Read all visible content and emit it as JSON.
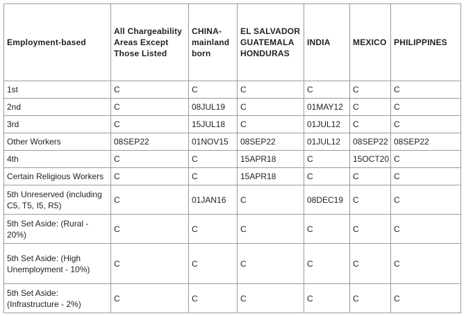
{
  "headers": [
    "Employment-based",
    "All Chargeability Areas Except Those Listed",
    "CHINA-mainland born",
    "EL SALVADOR GUATEMALA HONDURAS",
    "INDIA",
    "MEXICO",
    "PHILIPPINES"
  ],
  "rows": [
    [
      "1st",
      "C",
      "C",
      "C",
      "C",
      "C",
      "C"
    ],
    [
      "2nd",
      "C",
      "08JUL19",
      "C",
      "01MAY12",
      "C",
      "C"
    ],
    [
      "3rd",
      "C",
      "15JUL18",
      "C",
      "01JUL12",
      "C",
      "C"
    ],
    [
      "Other Workers",
      "08SEP22",
      "01NOV15",
      "08SEP22",
      "01JUL12",
      "08SEP22",
      "08SEP22"
    ],
    [
      "4th",
      "C",
      "C",
      "15APR18",
      "C",
      "15OCT20",
      "C"
    ],
    [
      "Certain Religious Workers",
      "C",
      "C",
      "15APR18",
      "C",
      "C",
      "C"
    ],
    [
      "5th Unreserved (including C5, T5, I5, R5)",
      "C",
      "01JAN16",
      "C",
      "08DEC19",
      "C",
      "C"
    ],
    [
      "5th Set Aside: (Rural - 20%)",
      "C",
      "C",
      "C",
      "C",
      "C",
      "C"
    ],
    [
      "5th Set Aside: (High Unemployment - 10%)",
      "C",
      "C",
      "C",
      "C",
      "C",
      "C"
    ],
    [
      "5th Set Aside: (Infrastructure - 2%)",
      "C",
      "C",
      "C",
      "C",
      "C",
      "C"
    ]
  ]
}
